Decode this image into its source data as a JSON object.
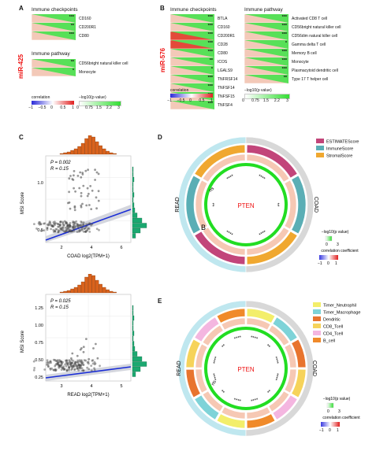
{
  "panel_a": {
    "letter": "A",
    "mirna": "miR-425",
    "checkpoints_title": "Immune checkpoints",
    "checkpoints": [
      {
        "label": "CD160",
        "stars": "***"
      },
      {
        "label": "CD200R1",
        "stars": "**"
      },
      {
        "label": "CD80",
        "stars": "***"
      }
    ],
    "pathway_title": "Immune pathway",
    "pathway": [
      {
        "label": "CD56bright natural killer cell",
        "stars": "**"
      },
      {
        "label": "Monocyte",
        "stars": "*"
      }
    ],
    "legend_corr_title": "correlation",
    "legend_corr_ticks": [
      "−1",
      "−0.5",
      "0",
      "0.5",
      "1"
    ],
    "legend_p_title": "−log10(p value)",
    "legend_p_ticks": [
      "0",
      "0.75",
      "1.5",
      "2.2",
      "3"
    ]
  },
  "panel_b": {
    "letter": "B",
    "mirna": "miR-576",
    "checkpoints_title": "Immune checkpoints",
    "checkpoints": [
      {
        "label": "BTLA",
        "stars": "***"
      },
      {
        "label": "CD160",
        "stars": "***"
      },
      {
        "label": "CD200R1",
        "stars": "***"
      },
      {
        "label": "CD28",
        "stars": "***"
      },
      {
        "label": "CD80",
        "stars": "***"
      },
      {
        "label": "ICOS",
        "stars": "**"
      },
      {
        "label": "LGALS9",
        "stars": "*"
      },
      {
        "label": "TNFRSF14",
        "stars": "***"
      },
      {
        "label": "TNFSF14",
        "stars": "***"
      },
      {
        "label": "TNFSF15",
        "stars": "***"
      },
      {
        "label": "TNFSF4",
        "stars": "***"
      }
    ],
    "pathway_title": "Immune pathway",
    "pathway": [
      {
        "label": "Activated CD8 T cell",
        "stars": "***"
      },
      {
        "label": "CD56bright natural killer cell",
        "stars": "***"
      },
      {
        "label": "CD56dim natural killer cell",
        "stars": "***"
      },
      {
        "label": "Gamma delta T cell",
        "stars": "*"
      },
      {
        "label": "Memory B cell",
        "stars": "***"
      },
      {
        "label": "Monocyte",
        "stars": "***"
      },
      {
        "label": "Plasmacytoid dendritic cell",
        "stars": "***"
      },
      {
        "label": "Type 17 T helper cell",
        "stars": "**"
      }
    ],
    "legend_corr_title": "correlation",
    "legend_corr_ticks": [
      "−1",
      "−0.5",
      "0",
      "0.5",
      "1"
    ],
    "legend_p_title": "−log10(p value)",
    "legend_p_ticks": [
      "0",
      "0.75",
      "1.5",
      "2.2",
      "3"
    ]
  },
  "panel_c": {
    "letter": "C",
    "top": {
      "p_text": "P = 0.002",
      "r_text": "R = 0.15",
      "ylabel": "MSI Score",
      "xlabel": "COAD log2(TPM+1)",
      "xticks": [
        "2",
        "4",
        "6"
      ],
      "yticks": [
        "0.5",
        "1.0"
      ]
    },
    "bottom": {
      "p_text": "P = 0.025",
      "r_text": "R = 0.15",
      "ylabel": "MSI Score",
      "xlabel": "READ log2(TPM+1)",
      "xticks": [
        "3",
        "4",
        "5"
      ],
      "yticks": [
        "0.25",
        "0.50",
        "0.75",
        "1.00",
        "1.25"
      ]
    }
  },
  "panel_d": {
    "letter": "D",
    "center": "PTEN",
    "left_label": "READ",
    "right_label": "COAD",
    "ns_label": "ns",
    "b_label": "B",
    "legend": [
      {
        "label": "ESTIMATEScore",
        "color": "#c2457a"
      },
      {
        "label": "ImmuneScore",
        "color": "#5aaeb5"
      },
      {
        "label": "StromalScore",
        "color": "#f0a830"
      }
    ],
    "p_title": "−log10(p value)",
    "p_ticks": [
      "0",
      "3"
    ],
    "corr_title": "correlation coefficient",
    "corr_ticks": [
      "−1",
      "0",
      "1"
    ]
  },
  "panel_e": {
    "letter": "E",
    "center": "PTEN",
    "left_label": "READ",
    "right_label": "COAD",
    "ns_label": "ns",
    "legend": [
      {
        "label": "Timer_Neutrophil",
        "color": "#f3ee6a"
      },
      {
        "label": "Timer_Macrophage",
        "color": "#7ed3d8"
      },
      {
        "label": "Dendritic",
        "color": "#e8742e"
      },
      {
        "label": "CD8_Tcell",
        "color": "#f6d35a"
      },
      {
        "label": "CD4_Tcell",
        "color": "#f4b6e0"
      },
      {
        "label": "B_cell",
        "color": "#f08a2a"
      }
    ],
    "p_title": "−log10(p value)",
    "p_ticks": [
      "0",
      "3"
    ],
    "corr_title": "correlation coefficient",
    "corr_ticks": [
      "−1",
      "0",
      "1"
    ]
  }
}
